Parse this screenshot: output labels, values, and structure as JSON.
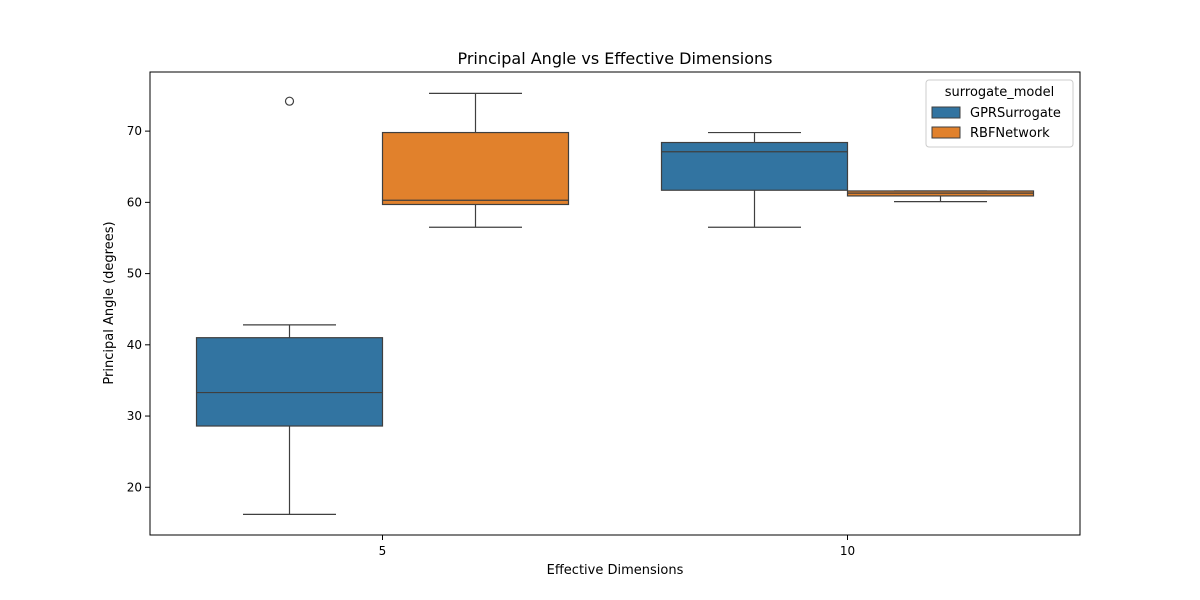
{
  "chart_data": {
    "type": "box",
    "title": "Principal Angle vs Effective Dimensions",
    "xlabel": "Effective Dimensions",
    "ylabel": "Principal Angle (degrees)",
    "categories": [
      "5",
      "10"
    ],
    "ylim": [
      13.3,
      78.3
    ],
    "yticks": [
      20,
      30,
      40,
      50,
      60,
      70
    ],
    "grid": false,
    "legend": {
      "title": "surrogate_model",
      "position": "top-right"
    },
    "series": [
      {
        "name": "GPRSurrogate",
        "color": "#3274a1",
        "boxes": [
          {
            "category": "5",
            "whisker_low": 16.2,
            "q1": 28.6,
            "median": 33.3,
            "q3": 41.0,
            "whisker_high": 42.8,
            "outliers": [
              74.2
            ]
          },
          {
            "category": "10",
            "whisker_low": 56.5,
            "q1": 61.7,
            "median": 67.1,
            "q3": 68.4,
            "whisker_high": 69.8,
            "outliers": []
          }
        ]
      },
      {
        "name": "RBFNetwork",
        "color": "#e1812c",
        "boxes": [
          {
            "category": "5",
            "whisker_low": 56.5,
            "q1": 59.7,
            "median": 60.3,
            "q3": 69.8,
            "whisker_high": 75.3,
            "outliers": []
          },
          {
            "category": "10",
            "whisker_low": 60.1,
            "q1": 60.9,
            "median": 61.3,
            "q3": 61.6,
            "whisker_high": 61.6,
            "outliers": []
          }
        ]
      }
    ]
  }
}
